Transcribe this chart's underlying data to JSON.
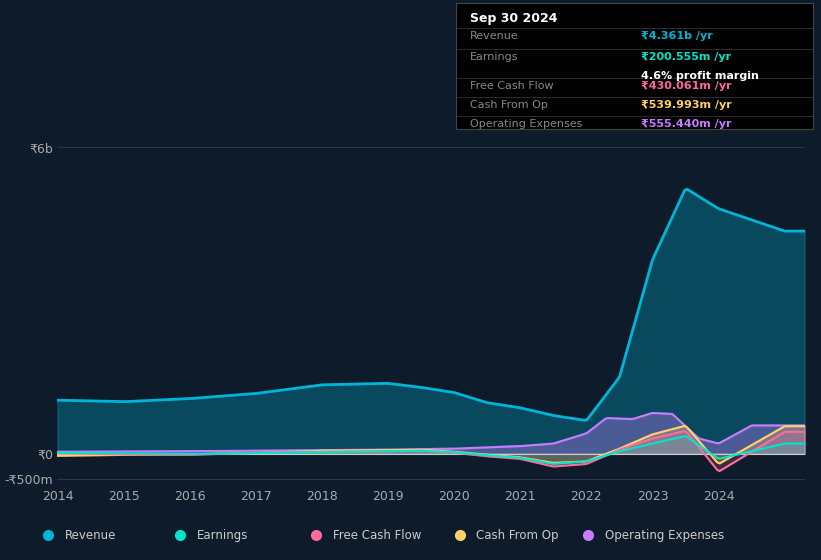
{
  "background_color": "#0d1b2a",
  "ylim": [
    -600000000,
    6200000000
  ],
  "colors": {
    "revenue": "#00b4d8",
    "earnings": "#00e5cc",
    "free_cash_flow": "#ff6b9d",
    "cash_from_op": "#ffd166",
    "operating_expenses": "#c77dff"
  },
  "legend_labels": [
    "Revenue",
    "Earnings",
    "Free Cash Flow",
    "Cash From Op",
    "Operating Expenses"
  ],
  "y_label_top": "₹6b",
  "y_label_zero": "₹0",
  "y_label_bottom": "-₹500m",
  "info_box": {
    "date": "Sep 30 2024",
    "revenue_label": "Revenue",
    "revenue_value": "₹4.361b /yr",
    "earnings_label": "Earnings",
    "earnings_value": "₹200.555m /yr",
    "margin_value": "4.6% profit margin",
    "fcf_label": "Free Cash Flow",
    "fcf_value": "₹430.061m /yr",
    "cfo_label": "Cash From Op",
    "cfo_value": "₹539.993m /yr",
    "opex_label": "Operating Expenses",
    "opex_value": "₹555.440m /yr"
  }
}
